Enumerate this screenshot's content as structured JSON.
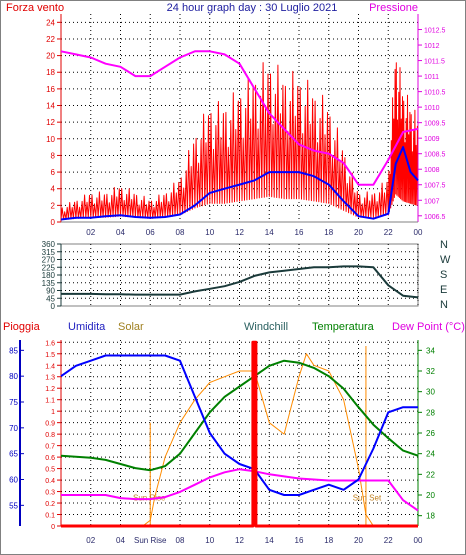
{
  "top": {
    "title": "24 hour graph day : 30 Luglio 2021",
    "left_label": "Forza vento",
    "right_label": "Pressione",
    "colors": {
      "wind": "#ff0000",
      "gust": "#ff0000",
      "pressure": "#ff00ff",
      "avg": "#0000ff"
    }
  },
  "dir": {
    "letters": [
      "N",
      "W",
      "S",
      "E",
      "N"
    ],
    "color": "#1a3a3a"
  },
  "bottom": {
    "labels": {
      "rain": "Pioggia",
      "hum": "Umidita",
      "solar": "Solar",
      "windchill": "Windchill",
      "temp": "Temperatura",
      "dew": "Dew Point (°C)"
    },
    "sun_rise": "Sun Rise",
    "sun_set": "Sun Set",
    "colors": {
      "rain": "#ff0000",
      "hum": "#0000ff",
      "solar": "#ff8c00",
      "temp": "#008000",
      "dew": "#ff00ff",
      "windchill": "#008000"
    }
  },
  "chart_data": [
    {
      "type": "line",
      "title": "24 hour graph day : 30 Luglio 2021",
      "x_ticks": [
        "02",
        "04",
        "06",
        "08",
        "10",
        "12",
        "14",
        "16",
        "18",
        "20",
        "22",
        "00"
      ],
      "y_left_ticks": [
        0,
        2,
        4,
        6,
        8,
        10,
        12,
        14,
        16,
        18,
        20,
        22,
        24
      ],
      "y_right_ticks": [
        1006.5,
        1007,
        1007.5,
        1008,
        1008.5,
        1009,
        1009.5,
        1010,
        1010.5,
        1011,
        1011.5,
        1012,
        1012.5
      ],
      "ylim_left": [
        0,
        25
      ],
      "ylim_right": [
        1006.3,
        1013
      ],
      "xlim": [
        0,
        24
      ],
      "series": [
        {
          "name": "Forza vento",
          "axis": "left",
          "x": [
            0,
            1,
            2,
            3,
            4,
            5,
            6,
            7,
            8,
            9,
            10,
            11,
            12,
            13,
            14,
            15,
            16,
            17,
            18,
            19,
            20,
            21,
            22,
            22.5,
            23,
            23.5,
            24
          ],
          "y": [
            1,
            1.5,
            2,
            2,
            2.5,
            2,
            1.5,
            2,
            3,
            6,
            8,
            8,
            9,
            10,
            11,
            10,
            10,
            9,
            8,
            5,
            2,
            2,
            3,
            12,
            9,
            8,
            7
          ]
        },
        {
          "name": "Pressione",
          "axis": "right",
          "x": [
            0,
            1,
            2,
            3,
            4,
            5,
            6,
            7,
            8,
            9,
            10,
            11,
            12,
            13,
            14,
            15,
            16,
            17,
            18,
            19,
            20,
            21,
            22,
            23,
            24
          ],
          "y": [
            1011.8,
            1011.7,
            1011.6,
            1011.4,
            1011.3,
            1011.0,
            1011.0,
            1011.3,
            1011.6,
            1011.8,
            1011.8,
            1011.7,
            1011.4,
            1010.6,
            1009.8,
            1009.3,
            1008.8,
            1008.6,
            1008.5,
            1008.2,
            1007.5,
            1007.5,
            1008.3,
            1009.2,
            1009.3
          ]
        },
        {
          "name": "",
          "axis": "left",
          "x": [
            0,
            1,
            2,
            3,
            4,
            5,
            6,
            7,
            8,
            9,
            10,
            11,
            12,
            13,
            14,
            15,
            16,
            17,
            18,
            19,
            20,
            21,
            22,
            22.5,
            23,
            23.5,
            24
          ],
          "y": [
            0.3,
            0.5,
            0.5,
            0.7,
            0.8,
            0.6,
            0.5,
            0.6,
            0.9,
            2,
            3.5,
            4,
            4.5,
            5,
            6,
            6,
            6,
            5.5,
            4.5,
            2.5,
            0.7,
            0.4,
            1,
            7,
            9,
            6,
            5
          ]
        }
      ]
    },
    {
      "type": "line",
      "y_ticks": [
        0,
        45,
        90,
        135,
        180,
        225,
        270,
        315,
        360
      ],
      "ylim": [
        0,
        360
      ],
      "xlim": [
        0,
        24
      ],
      "series": [
        {
          "name": "",
          "x": [
            0,
            1,
            2,
            3,
            4,
            5,
            6,
            7,
            8,
            9,
            10,
            11,
            12,
            13,
            14,
            15,
            16,
            17,
            18,
            19,
            20,
            21,
            22,
            23,
            24
          ],
          "y": [
            70,
            70,
            70,
            68,
            68,
            66,
            66,
            66,
            66,
            85,
            100,
            115,
            140,
            175,
            195,
            205,
            215,
            225,
            225,
            230,
            230,
            225,
            120,
            60,
            50
          ]
        }
      ]
    },
    {
      "type": "line",
      "x_ticks": [
        "02",
        "04",
        "Sun Rise",
        "08",
        "10",
        "12",
        "14",
        "16",
        "18",
        "20",
        "22",
        "00"
      ],
      "y_rain_ticks": [
        0,
        0.1,
        0.2,
        0.3,
        0.4,
        0.5,
        0.6,
        0.7,
        0.8,
        0.9,
        1,
        1.1,
        1.2,
        1.3,
        1.4,
        1.5,
        1.6
      ],
      "y_hum_ticks": [
        55,
        60,
        65,
        70,
        75,
        80,
        85
      ],
      "y_temp_ticks": [
        18,
        20,
        22,
        24,
        26,
        28,
        30,
        32,
        34
      ],
      "ylim_rain": [
        0,
        1.62
      ],
      "ylim_hum": [
        51,
        87
      ],
      "ylim_temp": [
        17,
        35
      ],
      "xlim": [
        0,
        24
      ],
      "sun_rise_hour": 6,
      "sun_set_hour": 20.5,
      "series": [
        {
          "name": "Pioggia",
          "axis": "rain",
          "x": [
            0,
            12.9,
            12.9,
            13.1,
            13.1,
            24
          ],
          "y": [
            0,
            0,
            1.6,
            1.6,
            0,
            0
          ]
        },
        {
          "name": "Umidita",
          "axis": "hum",
          "x": [
            0,
            1,
            2,
            3,
            4,
            5,
            6,
            7,
            8,
            9,
            10,
            11,
            12,
            13,
            14,
            15,
            16,
            17,
            18,
            19,
            20,
            21,
            22,
            23,
            24
          ],
          "y": [
            80,
            82,
            83,
            84,
            84,
            84,
            84,
            84,
            83,
            76,
            69,
            65,
            63,
            62,
            58,
            57,
            57,
            58,
            59,
            58,
            60,
            66,
            73,
            74,
            74
          ]
        },
        {
          "name": "Solar",
          "axis": "rain",
          "x": [
            0,
            5.5,
            6,
            6.3,
            7,
            8,
            9,
            10,
            11,
            12,
            13,
            14,
            15,
            16,
            16.5,
            17,
            18,
            19,
            20,
            20.5,
            21,
            24
          ],
          "y": [
            0,
            0,
            0.05,
            0.25,
            0.6,
            0.9,
            1.1,
            1.25,
            1.3,
            1.35,
            1.35,
            0.9,
            0.8,
            1.3,
            1.5,
            1.4,
            1.35,
            1.1,
            0.5,
            0.1,
            0,
            0
          ]
        },
        {
          "name": "Temperatura",
          "axis": "temp",
          "x": [
            0,
            1,
            2,
            3,
            4,
            5,
            6,
            7,
            8,
            9,
            10,
            11,
            12,
            13,
            14,
            15,
            16,
            17,
            18,
            19,
            20,
            21,
            22,
            23,
            24
          ],
          "y": [
            23.8,
            23.7,
            23.6,
            23.4,
            23.0,
            22.6,
            22.4,
            22.8,
            24.0,
            26.0,
            28.0,
            29.5,
            30.5,
            31.5,
            32.5,
            33.0,
            32.8,
            32.3,
            31.5,
            30.3,
            28.5,
            26.8,
            25.5,
            24.3,
            23.8
          ]
        },
        {
          "name": "Dew Point (°C)",
          "axis": "temp",
          "x": [
            0,
            1,
            2,
            3,
            4,
            5,
            6,
            7,
            8,
            9,
            10,
            11,
            12,
            13,
            14,
            15,
            16,
            17,
            18,
            19,
            20,
            21,
            22,
            23,
            24
          ],
          "y": [
            20.0,
            20.0,
            20.0,
            20.0,
            19.7,
            19.6,
            19.6,
            19.8,
            20.3,
            21.0,
            21.7,
            22.2,
            22.5,
            22.3,
            22.0,
            21.8,
            21.6,
            21.5,
            21.4,
            21.4,
            21.4,
            21.4,
            21.4,
            19.5,
            18.5
          ]
        }
      ]
    }
  ]
}
